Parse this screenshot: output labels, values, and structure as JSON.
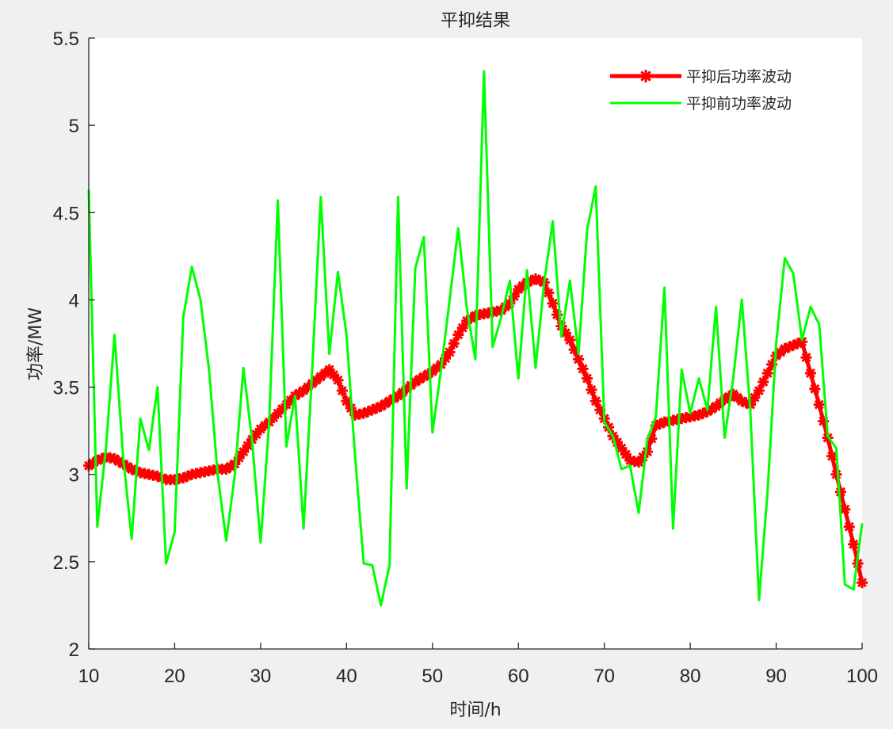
{
  "figure": {
    "background": "#f0f0f0",
    "plot_background": "#ffffff"
  },
  "chart_data": {
    "type": "line",
    "title": "平抑结果",
    "xlabel": "时间/h",
    "ylabel": "功率/MW",
    "xlim": [
      10,
      100
    ],
    "ylim": [
      2,
      5.5
    ],
    "xticks": [
      10,
      20,
      30,
      40,
      50,
      60,
      70,
      80,
      90,
      100
    ],
    "xtick_labels": [
      "10",
      "20",
      "30",
      "40",
      "50",
      "60",
      "70",
      "80",
      "90",
      "100"
    ],
    "yticks": [
      2,
      2.5,
      3,
      3.5,
      4,
      4.5,
      5,
      5.5
    ],
    "ytick_labels": [
      "2",
      "2.5",
      "3",
      "3.5",
      "4",
      "4.5",
      "5",
      "5.5"
    ],
    "grid": false,
    "legend_position": "upper right",
    "x": [
      10,
      11,
      12,
      13,
      14,
      15,
      16,
      17,
      18,
      19,
      20,
      21,
      22,
      23,
      24,
      25,
      26,
      27,
      28,
      29,
      30,
      31,
      32,
      33,
      34,
      35,
      36,
      37,
      38,
      39,
      40,
      41,
      42,
      43,
      44,
      45,
      46,
      47,
      48,
      49,
      50,
      51,
      52,
      53,
      54,
      55,
      56,
      57,
      58,
      59,
      60,
      61,
      62,
      63,
      64,
      65,
      66,
      67,
      68,
      69,
      70,
      71,
      72,
      73,
      74,
      75,
      76,
      77,
      78,
      79,
      80,
      81,
      82,
      83,
      84,
      85,
      86,
      87,
      88,
      89,
      90,
      91,
      92,
      93,
      94,
      95,
      96,
      97,
      98,
      99,
      100
    ],
    "series": [
      {
        "name": "平抑后功率波动",
        "color": "#ff0000",
        "line_width": 5,
        "marker": "asterisk",
        "values": [
          3.05,
          3.08,
          3.1,
          3.09,
          3.06,
          3.03,
          3.01,
          3.0,
          2.99,
          2.97,
          2.97,
          2.98,
          3.0,
          3.01,
          3.02,
          3.03,
          3.03,
          3.06,
          3.13,
          3.2,
          3.26,
          3.3,
          3.35,
          3.4,
          3.45,
          3.48,
          3.52,
          3.56,
          3.6,
          3.54,
          3.42,
          3.34,
          3.35,
          3.37,
          3.39,
          3.42,
          3.45,
          3.49,
          3.53,
          3.56,
          3.59,
          3.63,
          3.7,
          3.8,
          3.88,
          3.91,
          3.92,
          3.93,
          3.94,
          3.98,
          4.06,
          4.1,
          4.12,
          4.1,
          3.98,
          3.85,
          3.77,
          3.66,
          3.55,
          3.42,
          3.32,
          3.22,
          3.15,
          3.08,
          3.07,
          3.13,
          3.28,
          3.3,
          3.31,
          3.32,
          3.33,
          3.34,
          3.36,
          3.39,
          3.43,
          3.46,
          3.42,
          3.4,
          3.48,
          3.58,
          3.68,
          3.72,
          3.74,
          3.76,
          3.58,
          3.4,
          3.21,
          3.0,
          2.8,
          2.6,
          2.38
        ]
      },
      {
        "name": "平抑前功率波动",
        "color": "#00ff00",
        "line_width": 3,
        "marker": "none",
        "values": [
          4.63,
          2.7,
          3.15,
          3.8,
          3.1,
          2.63,
          3.32,
          3.14,
          3.5,
          2.49,
          2.67,
          3.9,
          4.19,
          4.0,
          3.6,
          3.0,
          2.62,
          3.0,
          3.61,
          3.2,
          2.61,
          3.3,
          4.57,
          3.16,
          3.45,
          2.69,
          3.6,
          4.59,
          3.69,
          4.16,
          3.8,
          3.1,
          2.49,
          2.48,
          2.25,
          2.48,
          4.59,
          2.92,
          4.18,
          4.36,
          3.24,
          3.6,
          4.0,
          4.41,
          3.95,
          3.66,
          5.31,
          3.73,
          3.9,
          4.11,
          3.55,
          4.17,
          3.61,
          4.1,
          4.45,
          3.79,
          4.11,
          3.69,
          4.4,
          4.65,
          3.3,
          3.22,
          3.03,
          3.05,
          2.78,
          3.2,
          3.33,
          4.07,
          2.69,
          3.6,
          3.35,
          3.55,
          3.37,
          3.96,
          3.21,
          3.55,
          4.0,
          3.36,
          2.28,
          2.9,
          3.75,
          4.24,
          4.15,
          3.77,
          3.96,
          3.86,
          3.22,
          3.15,
          2.37,
          2.34,
          2.72
        ]
      }
    ]
  }
}
